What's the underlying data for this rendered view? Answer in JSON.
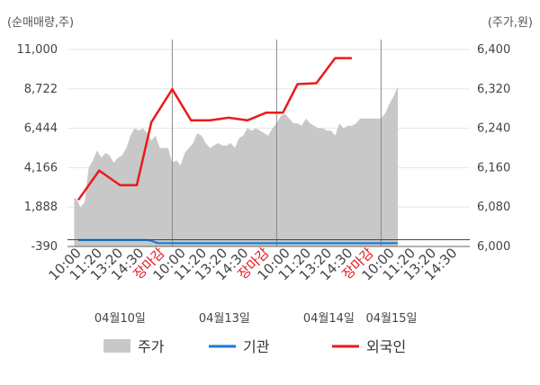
{
  "chart_data": {
    "type": "line",
    "left_axis_unit": "(순매매량,주)",
    "right_axis_unit": "(주가,원)",
    "left_ticks": [
      "11,000",
      "8,722",
      "6,444",
      "4,166",
      "1,888",
      "-390"
    ],
    "left_values": [
      11000,
      8722,
      6444,
      4166,
      1888,
      -390
    ],
    "right_ticks": [
      "6,400",
      "6,320",
      "6,240",
      "6,160",
      "6,080",
      "6,000"
    ],
    "right_values": [
      6400,
      6320,
      6240,
      6160,
      6080,
      6000
    ],
    "ylim_left": [
      -390,
      11000
    ],
    "ylim_right": [
      6000,
      6400
    ],
    "x_labels": [
      "10:00",
      "11:20",
      "13:20",
      "14:30",
      "장마감",
      "10:00",
      "11:20",
      "13:20",
      "14:30",
      "장마감",
      "10:00",
      "11:20",
      "13:20",
      "14:30",
      "장마감",
      "10:00",
      "11:20",
      "13:20",
      "14:30"
    ],
    "date_labels": [
      {
        "text": "04월10일",
        "slot": 2
      },
      {
        "text": "04월13일",
        "slot": 7
      },
      {
        "text": "04월14일",
        "slot": 12
      },
      {
        "text": "04월15일",
        "slot": 15
      }
    ],
    "day_separators": [
      4.5,
      9.5,
      14.5
    ],
    "series": [
      {
        "name": "주가",
        "kind": "area",
        "axis": "right",
        "color": "#c8c8c8",
        "points": [
          [
            -0.2,
            6100
          ],
          [
            -0.05,
            6095
          ],
          [
            0.1,
            6080
          ],
          [
            0.3,
            6090
          ],
          [
            0.5,
            6160
          ],
          [
            0.7,
            6175
          ],
          [
            0.9,
            6195
          ],
          [
            1.1,
            6180
          ],
          [
            1.3,
            6190
          ],
          [
            1.5,
            6185
          ],
          [
            1.7,
            6170
          ],
          [
            1.9,
            6180
          ],
          [
            2.1,
            6185
          ],
          [
            2.3,
            6200
          ],
          [
            2.5,
            6225
          ],
          [
            2.7,
            6240
          ],
          [
            2.9,
            6235
          ],
          [
            3.1,
            6240
          ],
          [
            3.3,
            6230
          ],
          [
            3.5,
            6215
          ],
          [
            3.7,
            6225
          ],
          [
            3.9,
            6200
          ],
          [
            4.1,
            6200
          ],
          [
            4.3,
            6200
          ],
          [
            4.5,
            6170
          ],
          [
            4.7,
            6175
          ],
          [
            4.9,
            6165
          ],
          [
            5.1,
            6190
          ],
          [
            5.3,
            6200
          ],
          [
            5.5,
            6210
          ],
          [
            5.7,
            6230
          ],
          [
            5.9,
            6225
          ],
          [
            6.1,
            6210
          ],
          [
            6.3,
            6200
          ],
          [
            6.5,
            6205
          ],
          [
            6.7,
            6210
          ],
          [
            6.9,
            6205
          ],
          [
            7.1,
            6205
          ],
          [
            7.3,
            6210
          ],
          [
            7.5,
            6200
          ],
          [
            7.7,
            6220
          ],
          [
            7.9,
            6225
          ],
          [
            8.1,
            6240
          ],
          [
            8.3,
            6235
          ],
          [
            8.5,
            6240
          ],
          [
            8.7,
            6235
          ],
          [
            8.9,
            6230
          ],
          [
            9.1,
            6225
          ],
          [
            9.3,
            6240
          ],
          [
            9.5,
            6250
          ],
          [
            9.7,
            6265
          ],
          [
            9.9,
            6270
          ],
          [
            10.1,
            6260
          ],
          [
            10.3,
            6250
          ],
          [
            10.5,
            6250
          ],
          [
            10.7,
            6245
          ],
          [
            10.9,
            6260
          ],
          [
            11.1,
            6250
          ],
          [
            11.3,
            6245
          ],
          [
            11.5,
            6240
          ],
          [
            11.7,
            6240
          ],
          [
            11.9,
            6235
          ],
          [
            12.1,
            6235
          ],
          [
            12.3,
            6225
          ],
          [
            12.5,
            6250
          ],
          [
            12.7,
            6240
          ],
          [
            12.9,
            6245
          ],
          [
            13.1,
            6245
          ],
          [
            13.3,
            6250
          ],
          [
            13.5,
            6260
          ],
          [
            13.7,
            6260
          ],
          [
            13.9,
            6260
          ],
          [
            14.1,
            6260
          ],
          [
            14.3,
            6260
          ],
          [
            14.5,
            6260
          ],
          [
            14.7,
            6270
          ],
          [
            14.9,
            6290
          ],
          [
            15.1,
            6305
          ],
          [
            15.3,
            6325
          ]
        ]
      },
      {
        "name": "기관",
        "kind": "line",
        "axis": "left",
        "color": "#1a7ad4",
        "points": [
          [
            0,
            -20
          ],
          [
            3.3,
            -20
          ],
          [
            3.5,
            -60
          ],
          [
            3.8,
            -190
          ],
          [
            4.5,
            -195
          ],
          [
            15.3,
            -195
          ]
        ]
      },
      {
        "name": "외국인",
        "kind": "line",
        "axis": "left",
        "color": "#ea1b1b",
        "points": [
          [
            0,
            2300
          ],
          [
            1,
            4000
          ],
          [
            2,
            3150
          ],
          [
            2.8,
            3150
          ],
          [
            3.5,
            6800
          ],
          [
            4.5,
            8700
          ],
          [
            5.4,
            6900
          ],
          [
            6.3,
            6900
          ],
          [
            7.2,
            7050
          ],
          [
            8.1,
            6900
          ],
          [
            9,
            7350
          ],
          [
            9.8,
            7350
          ],
          [
            10.5,
            9000
          ],
          [
            11.4,
            9050
          ],
          [
            12.3,
            10500
          ],
          [
            13.1,
            10500
          ]
        ]
      }
    ],
    "legend": [
      "주가",
      "기관",
      "외국인"
    ]
  }
}
